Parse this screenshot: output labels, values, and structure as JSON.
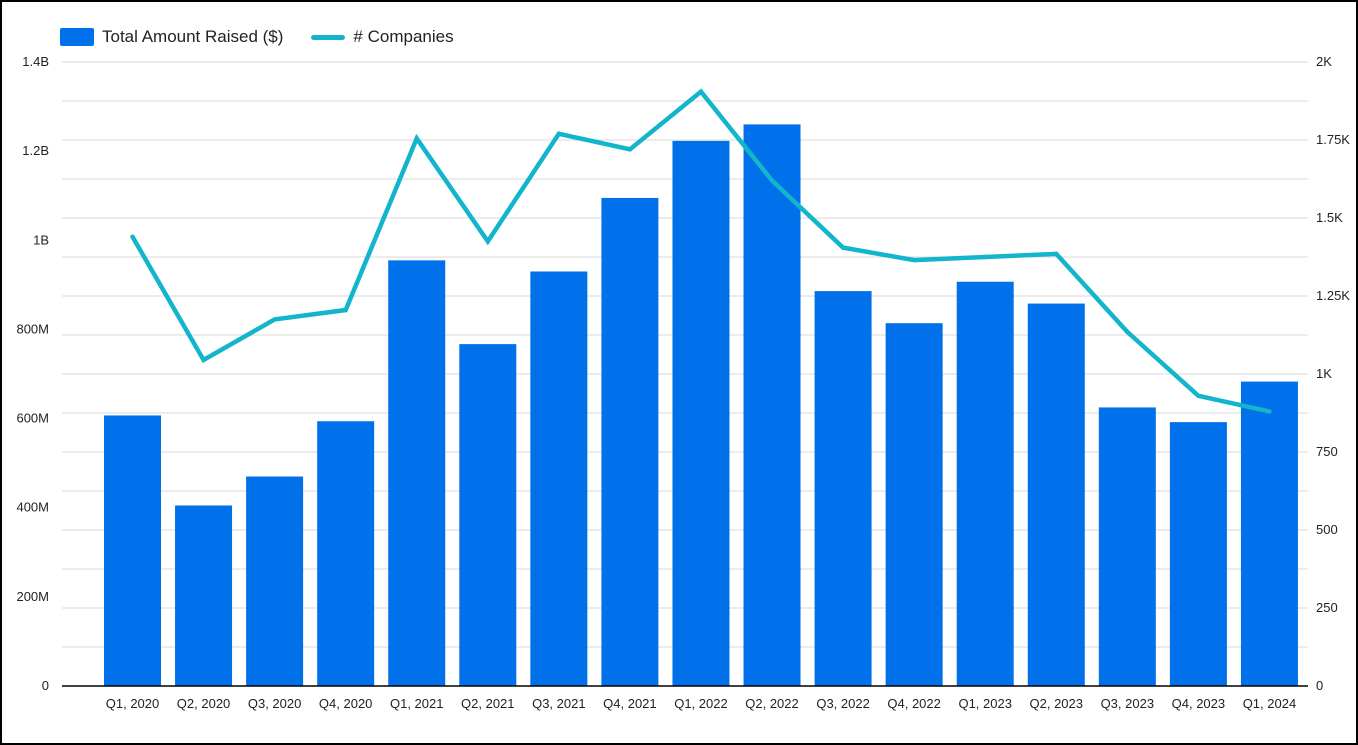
{
  "legend": {
    "bar_label": "Total Amount Raised ($)",
    "line_label": "# Companies"
  },
  "colors": {
    "bar": "#0070EB",
    "line": "#12B5CB",
    "grid": "#d9d9d9",
    "axis": "#000000"
  },
  "chart_data": {
    "type": "bar",
    "combo_line": true,
    "categories": [
      "Q1, 2020",
      "Q2, 2020",
      "Q3, 2020",
      "Q4, 2020",
      "Q1, 2021",
      "Q2, 2021",
      "Q3, 2021",
      "Q4, 2021",
      "Q1, 2022",
      "Q2, 2022",
      "Q3, 2022",
      "Q4, 2022",
      "Q1, 2023",
      "Q2, 2023",
      "Q3, 2023",
      "Q4, 2023",
      "Q1, 2024"
    ],
    "series": [
      {
        "name": "Total Amount Raised ($)",
        "type": "bar",
        "axis": "left",
        "values": [
          607000000,
          405000000,
          470000000,
          594000000,
          955000000,
          767000000,
          930000000,
          1095000000,
          1223000000,
          1260000000,
          886000000,
          814000000,
          907000000,
          858000000,
          625000000,
          592000000,
          683000000
        ]
      },
      {
        "name": "# Companies",
        "type": "line",
        "axis": "right",
        "values": [
          1440,
          1045,
          1175,
          1205,
          1755,
          1425,
          1770,
          1720,
          1905,
          1620,
          1405,
          1365,
          1375,
          1385,
          1135,
          930,
          880
        ]
      }
    ],
    "y_left": {
      "ylim": [
        0,
        1400000000
      ],
      "ticks": [
        "0",
        "200M",
        "400M",
        "600M",
        "800M",
        "1B",
        "1.2B",
        "1.4B"
      ]
    },
    "y_right": {
      "ylim": [
        0,
        2000
      ],
      "ticks": [
        "0",
        "250",
        "500",
        "750",
        "1K",
        "1.25K",
        "1.5K",
        "1.75K",
        "2K"
      ]
    },
    "grid": true,
    "legend_position": "top-left",
    "title": "",
    "xlabel": "",
    "ylabel": ""
  }
}
